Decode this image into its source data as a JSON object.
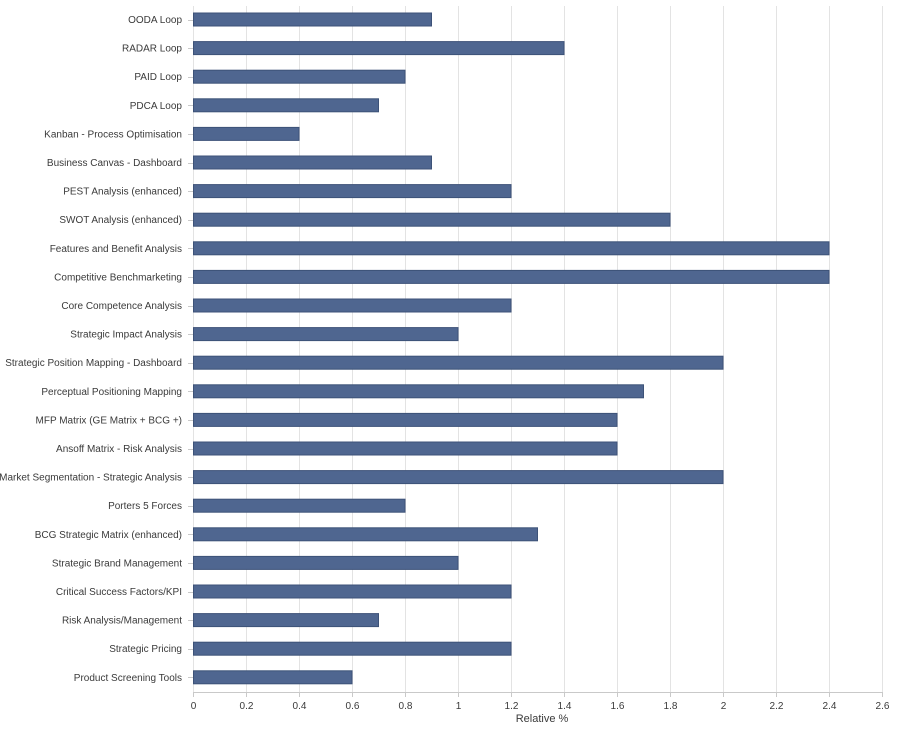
{
  "colors": {
    "bar_fill": "#4f6690",
    "bar_stroke": "#3d5278",
    "grid": "#e3e3e3",
    "axis": "#c9c9c9",
    "text": "#3a3a3a",
    "background": "#ffffff"
  },
  "chart_data": {
    "type": "bar",
    "orientation": "horizontal",
    "title": "",
    "xlabel": "Relative %",
    "ylabel": "",
    "xlim": [
      0,
      2.6
    ],
    "x_ticks": [
      0,
      0.2,
      0.4,
      0.6,
      0.8,
      1,
      1.2,
      1.4,
      1.6,
      1.8,
      2,
      2.2,
      2.4,
      2.6
    ],
    "grid": true,
    "legend": "none",
    "categories": [
      "OODA Loop",
      "RADAR Loop",
      "PAID Loop",
      "PDCA Loop",
      "Kanban - Process Optimisation",
      "Business Canvas - Dashboard",
      "PEST Analysis (enhanced)",
      "SWOT Analysis (enhanced)",
      "Features and Benefit Analysis",
      "Competitive Benchmarketing",
      "Core Competence Analysis",
      "Strategic Impact Analysis",
      "Strategic Position Mapping - Dashboard",
      "Perceptual Positioning Mapping",
      "MFP Matrix (GE Matrix + BCG +)",
      "Ansoff Matrix - Risk Analysis",
      "Market Segmentation - Strategic Analysis",
      "Porters 5 Forces",
      "BCG Strategic Matrix (enhanced)",
      "Strategic Brand Management",
      "Critical Success Factors/KPI",
      "Risk Analysis/Management",
      "Strategic Pricing",
      "Product Screening Tools"
    ],
    "values": [
      0.9,
      1.4,
      0.8,
      0.7,
      0.4,
      0.9,
      1.2,
      1.8,
      2.4,
      2.4,
      1.2,
      1.0,
      2.0,
      1.7,
      1.6,
      1.6,
      2.0,
      0.8,
      1.3,
      1.0,
      1.2,
      0.7,
      1.2,
      0.6
    ]
  }
}
